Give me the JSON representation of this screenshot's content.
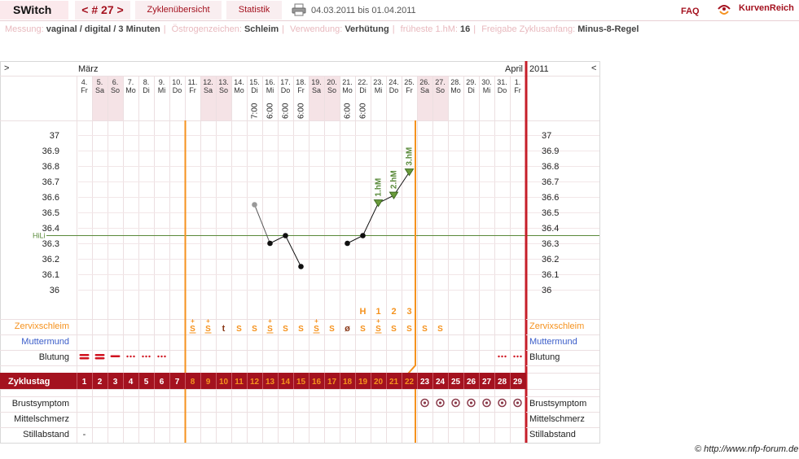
{
  "app": {
    "name": "SWitch",
    "cycle": "< # 27 >",
    "tabs": [
      "Zyklenübersicht",
      "Statistik"
    ],
    "date_range": "04.03.2011 bis 01.04.2011",
    "faq": "FAQ",
    "brand": "KurvenReich"
  },
  "info": [
    {
      "key": "Messung:",
      "value": "vaginal / digital / 3 Minuten"
    },
    {
      "key": "Östrogenzeichen:",
      "value": "Schleim"
    },
    {
      "key": "Verwendung:",
      "value": "Verhütung"
    },
    {
      "key": "früheste 1.hM:",
      "value": "16"
    },
    {
      "key": "Freigabe Zyklusanfang:",
      "value": "Minus-8-Regel"
    }
  ],
  "header": {
    "left_arrow": ">",
    "right_arrow": "<",
    "month1": "März",
    "month2": "April",
    "year": "2011"
  },
  "days": [
    {
      "d": "4.",
      "w": "Fr"
    },
    {
      "d": "5.",
      "w": "Sa"
    },
    {
      "d": "6.",
      "w": "So"
    },
    {
      "d": "7.",
      "w": "Mo"
    },
    {
      "d": "8.",
      "w": "Di"
    },
    {
      "d": "9.",
      "w": "Mi"
    },
    {
      "d": "10.",
      "w": "Do"
    },
    {
      "d": "11.",
      "w": "Fr"
    },
    {
      "d": "12.",
      "w": "Sa"
    },
    {
      "d": "13.",
      "w": "So"
    },
    {
      "d": "14.",
      "w": "Mo"
    },
    {
      "d": "15.",
      "w": "Di"
    },
    {
      "d": "16.",
      "w": "Mi"
    },
    {
      "d": "17.",
      "w": "Do"
    },
    {
      "d": "18.",
      "w": "Fr"
    },
    {
      "d": "19.",
      "w": "Sa"
    },
    {
      "d": "20.",
      "w": "So"
    },
    {
      "d": "21.",
      "w": "Mo"
    },
    {
      "d": "22.",
      "w": "Di"
    },
    {
      "d": "23.",
      "w": "Mi"
    },
    {
      "d": "24.",
      "w": "Do"
    },
    {
      "d": "25.",
      "w": "Fr"
    },
    {
      "d": "26.",
      "w": "Sa"
    },
    {
      "d": "27.",
      "w": "So"
    },
    {
      "d": "28.",
      "w": "Mo"
    },
    {
      "d": "29.",
      "w": "Di"
    },
    {
      "d": "30.",
      "w": "Mi"
    },
    {
      "d": "31.",
      "w": "Do"
    },
    {
      "d": "1.",
      "w": "Fr"
    }
  ],
  "times": [
    "",
    "",
    "",
    "",
    "",
    "",
    "",
    "",
    "",
    "",
    "",
    "7:00",
    "6:00",
    "6:00",
    "6:00",
    "",
    "",
    "6:00",
    "6:00",
    "",
    "",
    "",
    "",
    "",
    "",
    "",
    "",
    "",
    ""
  ],
  "chart_data": {
    "type": "line",
    "yticks": [
      "37",
      "36.9",
      "36.8",
      "36.7",
      "36.6",
      "36.5",
      "36.4",
      "36.3",
      "36.2",
      "36.1",
      "36"
    ],
    "ylim": [
      36,
      37
    ],
    "hili_label": "HiLi",
    "hili": 36.35,
    "points": [
      {
        "cycle_day": 12,
        "temp": 36.55,
        "excluded": true
      },
      {
        "cycle_day": 13,
        "temp": 36.3
      },
      {
        "cycle_day": 14,
        "temp": 36.35
      },
      {
        "cycle_day": 15,
        "temp": 36.15
      },
      {
        "cycle_day": 18,
        "temp": 36.3
      },
      {
        "cycle_day": 19,
        "temp": 36.35
      },
      {
        "cycle_day": 20,
        "temp": 36.56,
        "label": "1.hM"
      },
      {
        "cycle_day": 21,
        "temp": 36.61,
        "label": "2.hM"
      },
      {
        "cycle_day": 22,
        "temp": 36.76,
        "label": "3.hM"
      }
    ],
    "segments": [
      [
        13,
        14,
        15
      ],
      [
        18,
        19,
        20,
        21,
        22
      ]
    ]
  },
  "markers": [
    "",
    "",
    "",
    "",
    "",
    "",
    "",
    "",
    "",
    "",
    "",
    "",
    "",
    "",
    "",
    "",
    "",
    "",
    "H",
    "1",
    "2",
    "3",
    "",
    "",
    "",
    "",
    "",
    "",
    ""
  ],
  "rows": {
    "zervix": {
      "label": "Zervixschleim",
      "values": [
        "",
        "",
        "",
        "",
        "",
        "",
        "",
        "S+",
        "S+",
        "t",
        "S",
        "S",
        "S+",
        "S",
        "S",
        "S+",
        "S",
        "ø",
        "S",
        "S+",
        "S",
        "S",
        "S",
        "S",
        "",
        "",
        "",
        "",
        ""
      ]
    },
    "muttermund": {
      "label": "Muttermund"
    },
    "blutung": {
      "label": "Blutung",
      "values": [
        "heavy",
        "heavy",
        "medium",
        "light",
        "light",
        "light",
        "",
        "",
        "",
        "",
        "",
        "",
        "",
        "",
        "",
        "",
        "",
        "",
        "",
        "",
        "",
        "",
        "",
        "",
        "",
        "",
        "",
        "light",
        "light"
      ]
    },
    "zyklustag": {
      "label": "Zyklustag"
    },
    "brust": {
      "label": "Brustsymptom",
      "values": [
        "",
        "",
        "",
        "",
        "",
        "",
        "",
        "",
        "",
        "",
        "",
        "",
        "",
        "",
        "",
        "",
        "",
        "",
        "",
        "",
        "",
        "",
        "o",
        "o",
        "o",
        "o",
        "o",
        "o",
        "o"
      ]
    },
    "mittelschmerz": {
      "label": "Mittelschmerz"
    },
    "stillabstand": {
      "label": "Stillabstand",
      "values": [
        "-",
        "",
        "",
        "",
        "",
        "",
        "",
        "",
        "",
        "",
        "",
        "",
        "",
        "",
        "",
        "",
        "",
        "",
        "",
        "",
        "",
        "",
        "",
        "",
        "",
        "",
        "",
        "",
        ""
      ]
    }
  },
  "colors": {
    "accent": "#a4121f",
    "orange": "#f5921e",
    "hili": "#5a8a3a",
    "weekend": "#f5e3e6",
    "grid": "#ecdfe1",
    "blue": "#3b5dc9"
  },
  "copyright": "© http://www.nfp-forum.de"
}
